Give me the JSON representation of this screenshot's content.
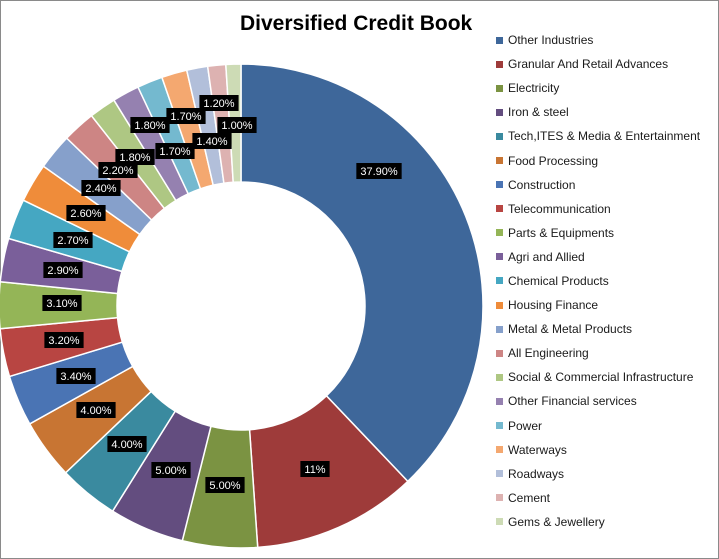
{
  "chart_data": {
    "type": "pie",
    "variant": "doughnut",
    "title": "Diversified Credit Book",
    "legend_position": "right",
    "slices": [
      {
        "name": "Other Industries",
        "value": 37.9,
        "label": "37.90%",
        "color": "#3E679A"
      },
      {
        "name": "Granular And Retail Advances",
        "value": 11.0,
        "label": "11%",
        "color": "#9E3B3A"
      },
      {
        "name": "Electricity",
        "value": 5.0,
        "label": "5.00%",
        "color": "#7B9342"
      },
      {
        "name": "Iron & steel",
        "value": 5.0,
        "label": "5.00%",
        "color": "#634D7F"
      },
      {
        "name": "Tech,ITES & Media & Entertainment",
        "value": 4.0,
        "label": "4.00%",
        "color": "#3A8A9F"
      },
      {
        "name": "Food Processing",
        "value": 4.0,
        "label": "4.00%",
        "color": "#C87533"
      },
      {
        "name": "Construction",
        "value": 3.4,
        "label": "3.40%",
        "color": "#4A74B4"
      },
      {
        "name": "Telecommunication",
        "value": 3.2,
        "label": "3.20%",
        "color": "#B84542"
      },
      {
        "name": "Parts & Equipments",
        "value": 3.1,
        "label": "3.10%",
        "color": "#94B557"
      },
      {
        "name": "Agri and Allied",
        "value": 2.9,
        "label": "2.90%",
        "color": "#7A5F9A"
      },
      {
        "name": "Chemical Products",
        "value": 2.7,
        "label": "2.70%",
        "color": "#45A7C2"
      },
      {
        "name": "Housing Finance",
        "value": 2.6,
        "label": "2.60%",
        "color": "#EF8C3A"
      },
      {
        "name": "Metal & Metal Products",
        "value": 2.4,
        "label": "2.40%",
        "color": "#86A0CB"
      },
      {
        "name": "All Engineering",
        "value": 2.2,
        "label": "2.20%",
        "color": "#CD8584"
      },
      {
        "name": "Social & Commercial Infrastructure",
        "value": 1.8,
        "label": "1.80%",
        "color": "#AEC783"
      },
      {
        "name": "Other Financial services",
        "value": 1.8,
        "label": "1.80%",
        "color": "#9581B0"
      },
      {
        "name": "Power",
        "value": 1.7,
        "label": "1.70%",
        "color": "#74B9CF"
      },
      {
        "name": "Waterways",
        "value": 1.7,
        "label": "1.70%",
        "color": "#F4A870"
      },
      {
        "name": "Roadways",
        "value": 1.4,
        "label": "1.40%",
        "color": "#B2BFDA"
      },
      {
        "name": "Cement",
        "value": 1.2,
        "label": "1.20%",
        "color": "#DDB2B1"
      },
      {
        "name": "Gems & Jewellery",
        "value": 1.0,
        "label": "1.00%",
        "color": "#CDDBB5"
      }
    ]
  }
}
